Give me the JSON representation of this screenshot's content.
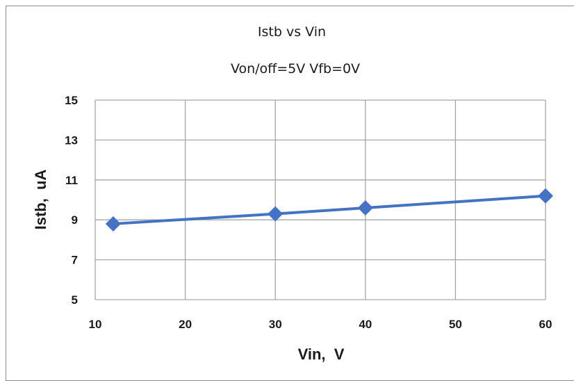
{
  "chart_data": {
    "type": "line",
    "title": "Istb vs Vin",
    "subtitle": "Von/off=5V  Vfb=0V",
    "xlabel": "Vin,  V",
    "ylabel": "Istb,  uA",
    "xlim": [
      10,
      60
    ],
    "ylim": [
      5,
      15
    ],
    "xticks": [
      10,
      20,
      30,
      40,
      50,
      60
    ],
    "yticks": [
      5,
      7,
      9,
      11,
      13,
      15
    ],
    "grid": true,
    "legend": "none",
    "series": [
      {
        "x": [
          12,
          30,
          40,
          60
        ],
        "y": [
          8.8,
          9.3,
          9.6,
          10.2
        ],
        "color": "#4472c4",
        "marker": "diamond"
      }
    ]
  }
}
